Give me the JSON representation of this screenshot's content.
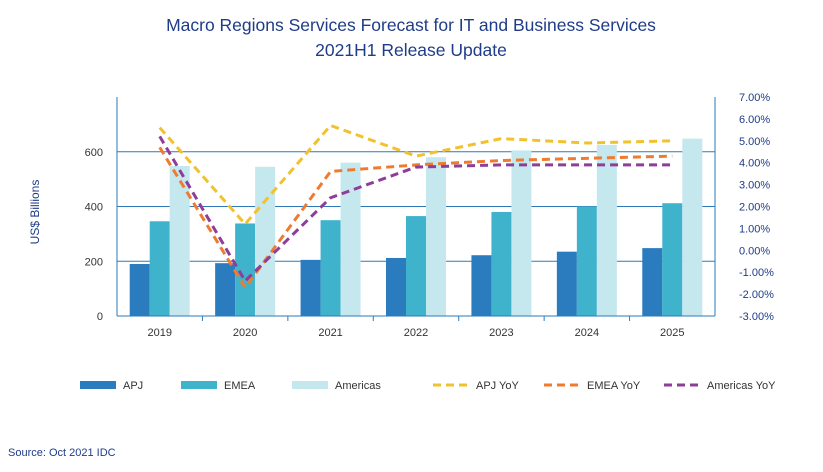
{
  "chart_data": {
    "type": "bar",
    "title": "Macro Regions Services Forecast for IT and Business Services",
    "subtitle": "2021H1 Release Update",
    "ylabel": "US$ Billions",
    "categories": [
      "2019",
      "2020",
      "2021",
      "2022",
      "2023",
      "2024",
      "2025"
    ],
    "ylim": [
      0,
      800
    ],
    "y_ticks": [
      "0",
      "200",
      "400",
      "600"
    ],
    "y2lim": [
      -3.0,
      7.0
    ],
    "y2_ticks": [
      "-3.00%",
      "-2.00%",
      "-1.00%",
      "0.00%",
      "1.00%",
      "2.00%",
      "3.00%",
      "4.00%",
      "5.00%",
      "6.00%",
      "7.00%"
    ],
    "grid": "horizontal",
    "legend_position": "bottom",
    "series": [
      {
        "name": "APJ",
        "kind": "bar",
        "axis": "left",
        "color": "#2b7bbf",
        "values": [
          190,
          193,
          205,
          212,
          222,
          235,
          248
        ]
      },
      {
        "name": "EMEA",
        "kind": "bar",
        "axis": "left",
        "color": "#3fb3cc",
        "values": [
          346,
          338,
          350,
          365,
          380,
          400,
          412
        ]
      },
      {
        "name": "Americas",
        "kind": "bar",
        "axis": "left",
        "color": "#c5e8ef",
        "values": [
          548,
          545,
          560,
          580,
          605,
          625,
          648
        ]
      },
      {
        "name": "APJ YoY",
        "kind": "line",
        "axis": "right",
        "color": "#f2c12e",
        "values": [
          5.6,
          1.2,
          5.7,
          4.3,
          5.1,
          4.9,
          5.0
        ]
      },
      {
        "name": "EMEA YoY",
        "kind": "line",
        "axis": "right",
        "color": "#ee7b30",
        "values": [
          4.7,
          -1.7,
          3.6,
          3.9,
          4.1,
          4.2,
          4.3
        ]
      },
      {
        "name": "Americas YoY",
        "kind": "line",
        "axis": "right",
        "color": "#8e3d98",
        "values": [
          5.2,
          -1.4,
          2.4,
          3.8,
          3.9,
          3.9,
          3.9
        ]
      }
    ]
  },
  "source": "Source: Oct 2021 IDC"
}
